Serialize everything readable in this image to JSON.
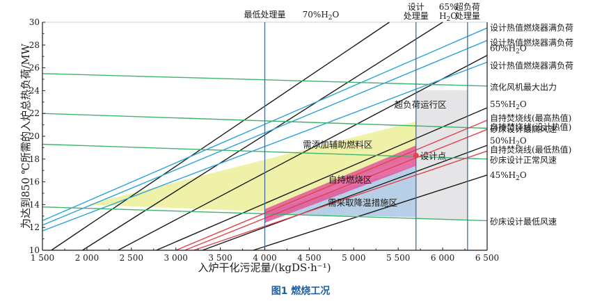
{
  "chart_data": {
    "type": "line",
    "caption": "图1 燃烧工况",
    "xlabel": "入炉干化污泥量/(kgDS·h⁻¹)",
    "ylabel": "为达到850 ℃所需的入炉总热负荷/MW",
    "xlim": [
      1500,
      6500
    ],
    "ylim": [
      10,
      30
    ],
    "xticks": [
      1500,
      2000,
      2500,
      3000,
      3500,
      4000,
      4500,
      5000,
      5500,
      6000,
      6500
    ],
    "xtick_labels": [
      "1 500",
      "2 000",
      "2 500",
      "3 000",
      "3 500",
      "4 000",
      "4 500",
      "5 000",
      "5 500",
      "6 000",
      "6 500"
    ],
    "yticks": [
      10,
      12,
      14,
      16,
      18,
      20,
      22,
      24,
      26,
      28,
      30
    ],
    "ytick_labels": [
      "10",
      "12",
      "14",
      "16",
      "18",
      "20",
      "22",
      "24",
      "26",
      "28",
      "30"
    ],
    "colors": {
      "black": "#1a1a1a",
      "blue": "#2aa3d6",
      "green": "#3cb56a",
      "red": "#e0434a",
      "vline": "#3d6d9a",
      "yellow": "#eef0a0",
      "pink": "#e0579a",
      "lightblue": "#b3cde6",
      "gray": "#e4e4e6",
      "point": "#e0434a"
    },
    "vlines": [
      {
        "id": "min",
        "x": 4000,
        "label": [
          "最低处理量"
        ]
      },
      {
        "id": "design",
        "x": 5700,
        "label": [
          "设计",
          "处理量"
        ]
      },
      {
        "id": "over",
        "x": 6280,
        "label": [
          "超负荷",
          "处理量"
        ]
      }
    ],
    "series": [
      {
        "name": "70%H2O",
        "color": "black",
        "points": [
          [
            1600,
            10
          ],
          [
            5400,
            30
          ]
        ],
        "label": {
          "text": "70%H",
          "sub": "2",
          "tail": "O",
          "x": 4630,
          "y": 30,
          "pos": "top"
        }
      },
      {
        "name": "65%H2O",
        "color": "black",
        "points": [
          [
            1950,
            10
          ],
          [
            6000,
            30
          ]
        ],
        "label": {
          "text": "65%",
          "line2": "H",
          "sub": "2",
          "tail": "O",
          "x": 6000,
          "y": 30,
          "pos": "top"
        }
      },
      {
        "name": "60%H2O",
        "color": "black",
        "points": [
          [
            2350,
            10
          ],
          [
            6500,
            27.1
          ]
        ],
        "label": {
          "text": "60%H",
          "sub": "2",
          "tail": "O",
          "y": 27.7
        }
      },
      {
        "name": "55%H2O",
        "color": "black",
        "points": [
          [
            2780,
            10
          ],
          [
            6500,
            22.5
          ]
        ],
        "label": {
          "text": "55%H",
          "sub": "2",
          "tail": "O",
          "y": 22.8
        }
      },
      {
        "name": "50%H2O",
        "color": "black",
        "points": [
          [
            3300,
            10
          ],
          [
            6500,
            19.2
          ]
        ],
        "label": {
          "text": "50%H",
          "sub": "2",
          "tail": "O",
          "y": 19.6
        }
      },
      {
        "name": "45%H2O",
        "color": "black",
        "points": [
          [
            3870,
            10
          ],
          [
            6500,
            16.6
          ]
        ],
        "label": {
          "text": "45%H",
          "sub": "2",
          "tail": "O",
          "y": 16.6
        }
      },
      {
        "name": "设计热值燃烧器满负荷",
        "color": "blue",
        "points": [
          [
            1500,
            12.6
          ],
          [
            6500,
            29.5
          ]
        ],
        "label": {
          "text": "设计热值燃烧器满负荷",
          "y": 29.5
        }
      },
      {
        "name": "设计热值燃烧器满负荷",
        "color": "blue",
        "points": [
          [
            1500,
            12.2
          ],
          [
            6500,
            28.4
          ]
        ],
        "label": {
          "text": "设计热值燃烧器满负荷",
          "y": 28.2
        }
      },
      {
        "name": "设计热值燃烧器满负荷",
        "color": "blue",
        "points": [
          [
            1500,
            11.7
          ],
          [
            6500,
            26.5
          ]
        ],
        "label": {
          "text": "设计热值燃烧器满负荷",
          "y": 26.2
        }
      },
      {
        "name": "流化风机最大出力",
        "color": "green",
        "points": [
          [
            1500,
            25.5
          ],
          [
            6500,
            24.4
          ]
        ],
        "label": {
          "text": "流化风机最大出力",
          "y": 24.3
        }
      },
      {
        "name": "砂床设计最高风速",
        "color": "green",
        "points": [
          [
            1500,
            22.0
          ],
          [
            6500,
            20.7
          ]
        ],
        "label": {
          "text": "砂床设计最高风速",
          "y": 20.6
        }
      },
      {
        "name": "砂床设计正常风速",
        "color": "green",
        "points": [
          [
            1500,
            19.3
          ],
          [
            6500,
            18.0
          ]
        ],
        "label": {
          "text": "砂床设计正常风速",
          "y": 17.9
        }
      },
      {
        "name": "砂床设计最低风速",
        "color": "green",
        "points": [
          [
            1500,
            13.8
          ],
          [
            6500,
            12.6
          ]
        ],
        "label": {
          "text": "砂床设计最低风速",
          "y": 12.5
        }
      },
      {
        "name": "自持焚烧线(最高热值)",
        "color": "red",
        "points": [
          [
            3000,
            10
          ],
          [
            6500,
            21.4
          ]
        ],
        "label": {
          "text": "自持焚烧线(最高热值)",
          "y": 21.6
        }
      },
      {
        "name": "自持焚烧线(设计热值)",
        "color": "red",
        "points": [
          [
            3100,
            10
          ],
          [
            6500,
            20.6
          ]
        ],
        "label": {
          "text": "自持焚烧线(设计热值)",
          "y": 20.8
        }
      },
      {
        "name": "自持焚烧线(最低热值)",
        "color": "red",
        "points": [
          [
            3200,
            10
          ],
          [
            6500,
            18.7
          ]
        ],
        "label": {
          "text": "自持焚烧线(最低热值)",
          "y": 18.8
        }
      }
    ],
    "regions": [
      {
        "id": "gray",
        "name": "超负荷运行区",
        "color": "gray",
        "opacity": 0.95,
        "polygon": [
          [
            5700,
            24.05
          ],
          [
            6280,
            24.05
          ],
          [
            6280,
            12.7
          ],
          [
            5700,
            12.7
          ]
        ]
      },
      {
        "id": "yellow",
        "name": "需添加辅助燃料区",
        "color": "yellow",
        "opacity": 0.9,
        "polygon": [
          [
            2000,
            14.0
          ],
          [
            5700,
            21.3
          ],
          [
            5700,
            18.3
          ],
          [
            4000,
            13.4
          ]
        ]
      },
      {
        "id": "lightblue",
        "name": "需采取降温措施区",
        "color": "lightblue",
        "opacity": 0.95,
        "polygon": [
          [
            4000,
            13.3
          ],
          [
            5700,
            17.4
          ],
          [
            5700,
            12.9
          ],
          [
            4000,
            13.2
          ]
        ]
      },
      {
        "id": "pink",
        "name": "自持燃烧区",
        "color": "pink",
        "opacity": 0.85,
        "polygon": [
          [
            4000,
            13.6
          ],
          [
            5700,
            19.2
          ],
          [
            5700,
            17.4
          ],
          [
            4000,
            12.4
          ]
        ]
      }
    ],
    "zone_labels": [
      {
        "text": "超负荷运行区",
        "x": 5750,
        "y": 22.5
      },
      {
        "text": "需添加辅助燃料区",
        "x": 4820,
        "y": 19.0
      },
      {
        "text": "自持燃烧区",
        "x": 4960,
        "y": 15.9
      },
      {
        "text": "需采取降温措施区",
        "x": 5100,
        "y": 13.9
      }
    ],
    "design_point": {
      "label": "设计点",
      "x": 5700,
      "y": 18.3
    }
  }
}
